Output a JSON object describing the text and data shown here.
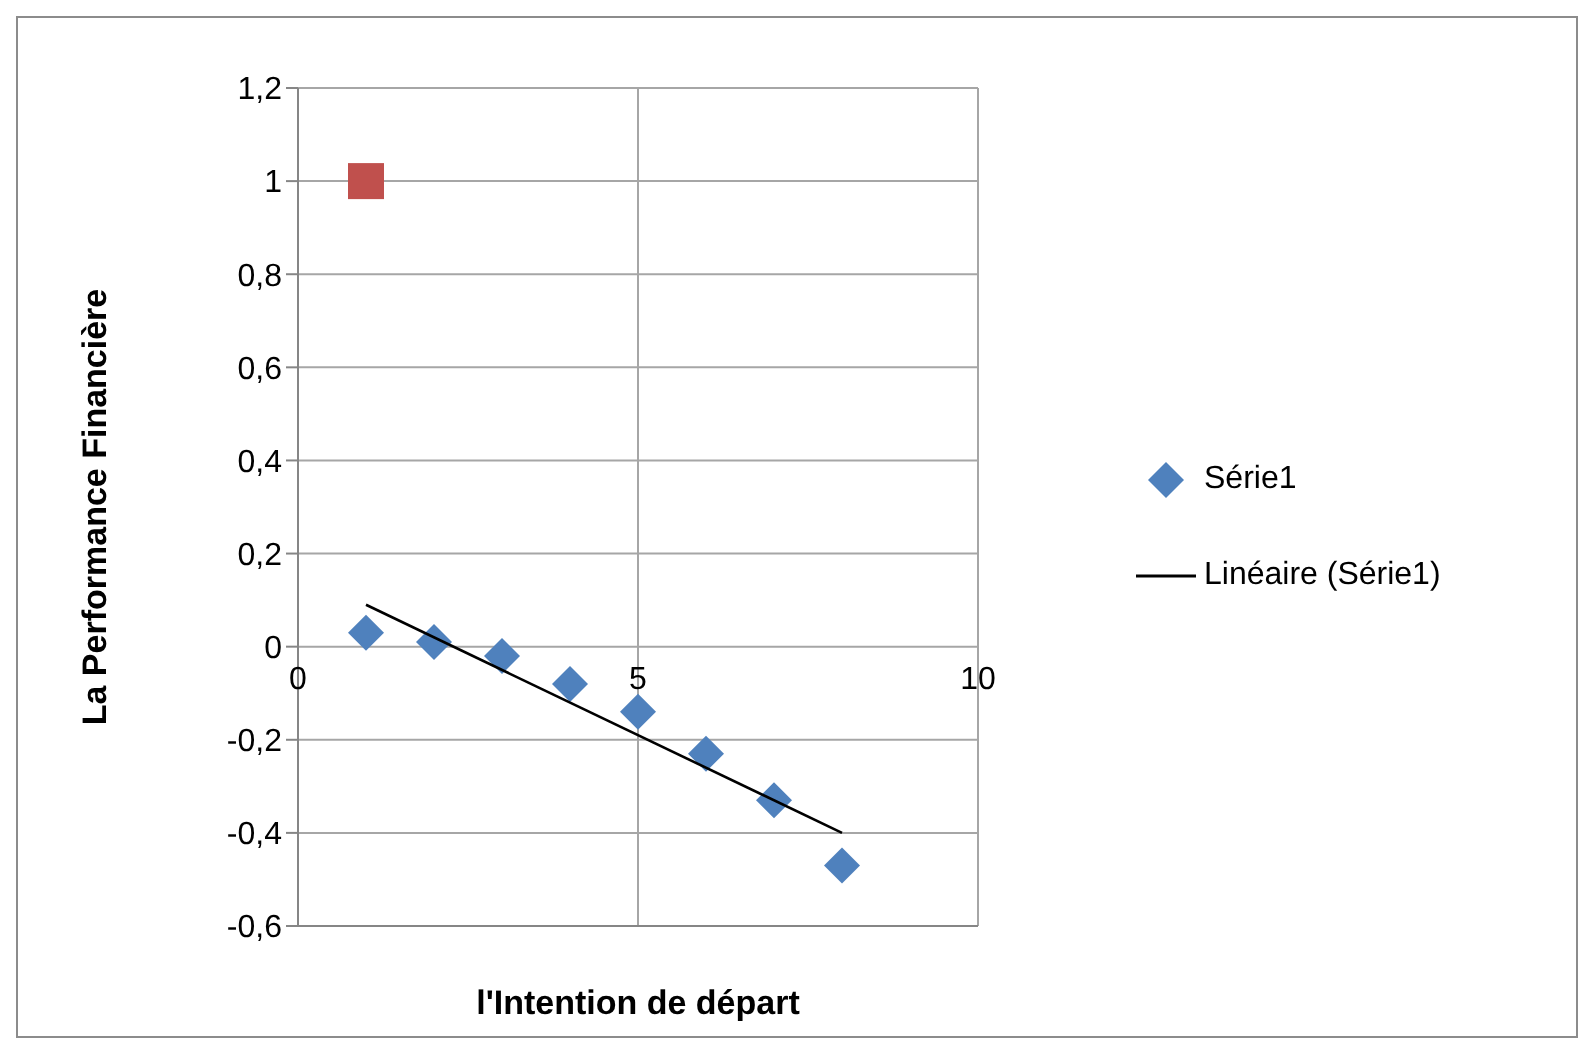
{
  "chart_data": {
    "type": "scatter",
    "xlabel": "l'Intention de départ",
    "ylabel": "La Performance Financière",
    "xlim": [
      0,
      10
    ],
    "xticks": [
      0,
      5,
      10
    ],
    "ylim": [
      -0.6,
      1.2
    ],
    "yticks": [
      {
        "value": -0.6,
        "label": "-0,6"
      },
      {
        "value": -0.4,
        "label": "-0,4"
      },
      {
        "value": -0.2,
        "label": "-0,2"
      },
      {
        "value": 0,
        "label": "0"
      },
      {
        "value": 0.2,
        "label": "0,2"
      },
      {
        "value": 0.4,
        "label": "0,4"
      },
      {
        "value": 0.6,
        "label": "0,6"
      },
      {
        "value": 0.8,
        "label": "0,8"
      },
      {
        "value": 1,
        "label": "1"
      },
      {
        "value": 1.2,
        "label": "1,2"
      }
    ],
    "grid": true,
    "legend": "right",
    "series": [
      {
        "name": "Série1",
        "marker": "diamond",
        "color": "#4f81bd",
        "x": [
          1,
          2,
          3,
          4,
          5,
          6,
          7,
          8
        ],
        "values": [
          0.03,
          0.01,
          -0.02,
          -0.08,
          -0.14,
          -0.23,
          -0.33,
          -0.47
        ]
      },
      {
        "marker": "square",
        "color": "#c0504d",
        "x": [
          1
        ],
        "values": [
          1
        ]
      },
      {
        "name": "Linéaire (Série1)",
        "type": "line",
        "marker": "none",
        "line_style": "solid",
        "color": "#000000",
        "x": [
          1,
          8
        ],
        "values": [
          0.09,
          -0.4
        ]
      }
    ]
  }
}
